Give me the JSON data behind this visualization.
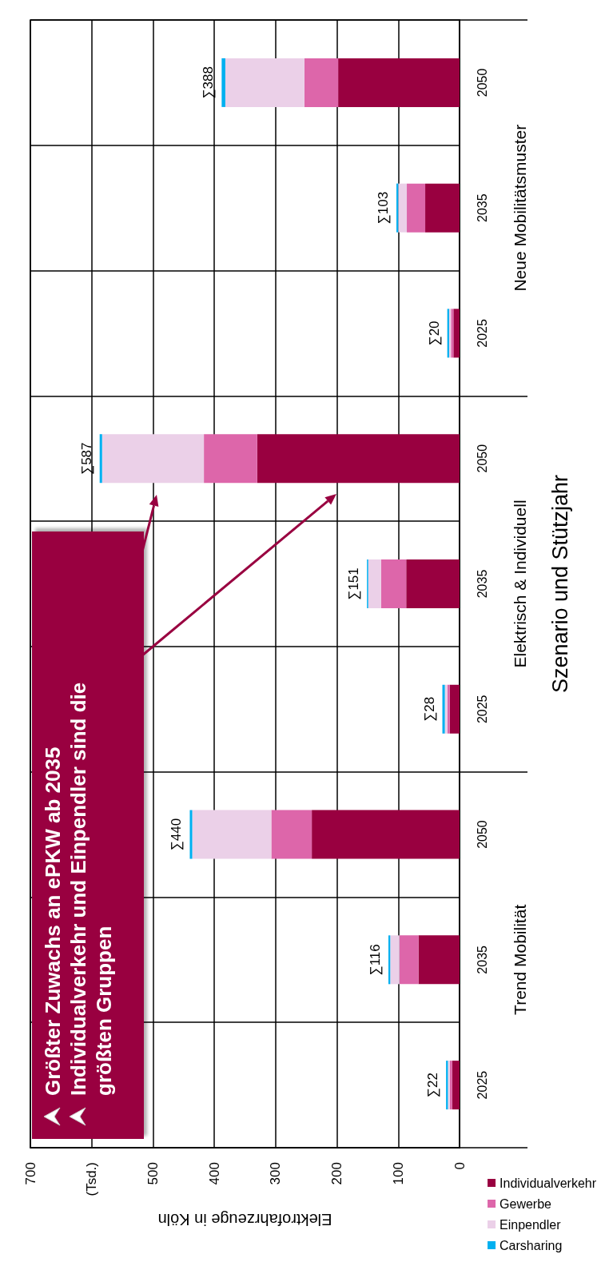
{
  "chart_data": {
    "type": "bar",
    "stacked": true,
    "orientation": "horizontal",
    "xlabel": "Elektrofahrzeuge in Köln",
    "ylabel": "Szenario und Stützjahr",
    "categories": [
      "2050",
      "2035",
      "2025",
      "2050",
      "2035",
      "2025",
      "2050",
      "2035",
      "2025"
    ],
    "series": [
      {
        "name": "Individualverkehr",
        "color": "#990040",
        "values": [
          198,
          56,
          10,
          330,
          87,
          16,
          241,
          67,
          12
        ]
      },
      {
        "name": "Gewerbe",
        "color": "#dd66aa",
        "values": [
          55,
          30,
          4,
          87,
          41,
          4,
          66,
          31,
          4
        ]
      },
      {
        "name": "Einpendler",
        "color": "#ebd0e8",
        "values": [
          129,
          14,
          3,
          166,
          21,
          4,
          129,
          15,
          3
        ]
      },
      {
        "name": "Carsharing",
        "color": "#00b0f0",
        "values": [
          6,
          3,
          3,
          4,
          2,
          4,
          4,
          3,
          3
        ]
      }
    ],
    "totals": [
      "∑388",
      "∑103",
      "∑20",
      "∑587",
      "∑151",
      "∑28",
      "∑440",
      "∑116",
      "∑22"
    ],
    "xlim": [
      700,
      0
    ],
    "xticks": [
      0,
      100,
      200,
      300,
      400,
      500,
      {
        "value": 600,
        "label": "(Tsd.)"
      },
      700
    ],
    "grid": true,
    "legend": "bottom right",
    "annotations": [
      "Neue Mobilitätsmuster",
      "Elektrisch & Individuell",
      "Trend Mobilität",
      "Größter Zuwachs an ePKW ab 2035",
      "Individualverkehr und Einpendler sind die größten Gruppen"
    ]
  }
}
